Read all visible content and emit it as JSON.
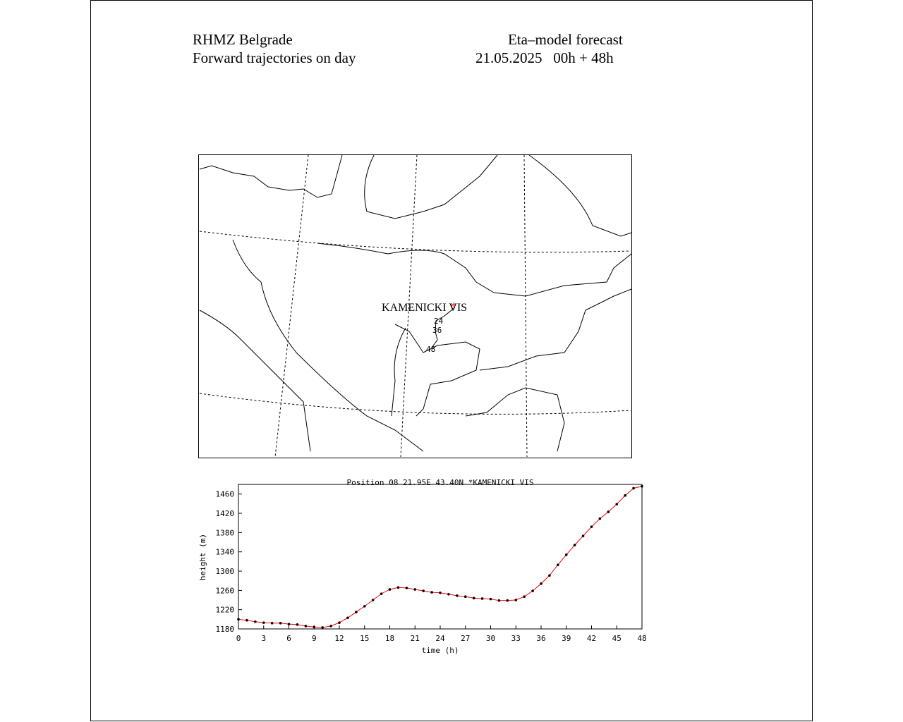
{
  "header": {
    "org": "RHMZ Belgrade",
    "model": "Eta–model forecast",
    "subtitle": "Forward trajectories on day",
    "date": "21.05.2025   00h + 48h"
  },
  "map": {
    "station": "KAMENICKI VIS",
    "hour_labels": [
      "24",
      "36",
      "48"
    ]
  },
  "chart_data": {
    "type": "line",
    "title": "Position 08 21.95E 43.40N *KAMENICKI VIS",
    "xlabel": "time (h)",
    "ylabel": "height (m)",
    "x": [
      0,
      1,
      2,
      3,
      4,
      5,
      6,
      7,
      8,
      9,
      10,
      11,
      12,
      13,
      14,
      15,
      16,
      17,
      18,
      19,
      20,
      21,
      22,
      23,
      24,
      25,
      26,
      27,
      28,
      29,
      30,
      31,
      32,
      33,
      34,
      35,
      36,
      37,
      38,
      39,
      40,
      41,
      42,
      43,
      44,
      45,
      46,
      47,
      48
    ],
    "series": [
      {
        "name": "height",
        "color": "#ff0000",
        "values": [
          1200,
          1198,
          1195,
          1193,
          1192,
          1192,
          1190,
          1189,
          1186,
          1184,
          1183,
          1186,
          1193,
          1203,
          1215,
          1227,
          1240,
          1253,
          1262,
          1266,
          1265,
          1262,
          1259,
          1256,
          1255,
          1252,
          1249,
          1247,
          1244,
          1243,
          1242,
          1239,
          1239,
          1240,
          1247,
          1259,
          1274,
          1291,
          1313,
          1334,
          1354,
          1373,
          1392,
          1409,
          1423,
          1439,
          1457,
          1472,
          1476
        ]
      }
    ],
    "xlim": [
      0,
      48
    ],
    "xticks": [
      0,
      3,
      6,
      9,
      12,
      15,
      18,
      21,
      24,
      27,
      30,
      33,
      36,
      39,
      42,
      45,
      48
    ],
    "ylim": [
      1180,
      1480
    ],
    "yticks": [
      1180,
      1220,
      1260,
      1300,
      1340,
      1380,
      1420,
      1460
    ]
  }
}
